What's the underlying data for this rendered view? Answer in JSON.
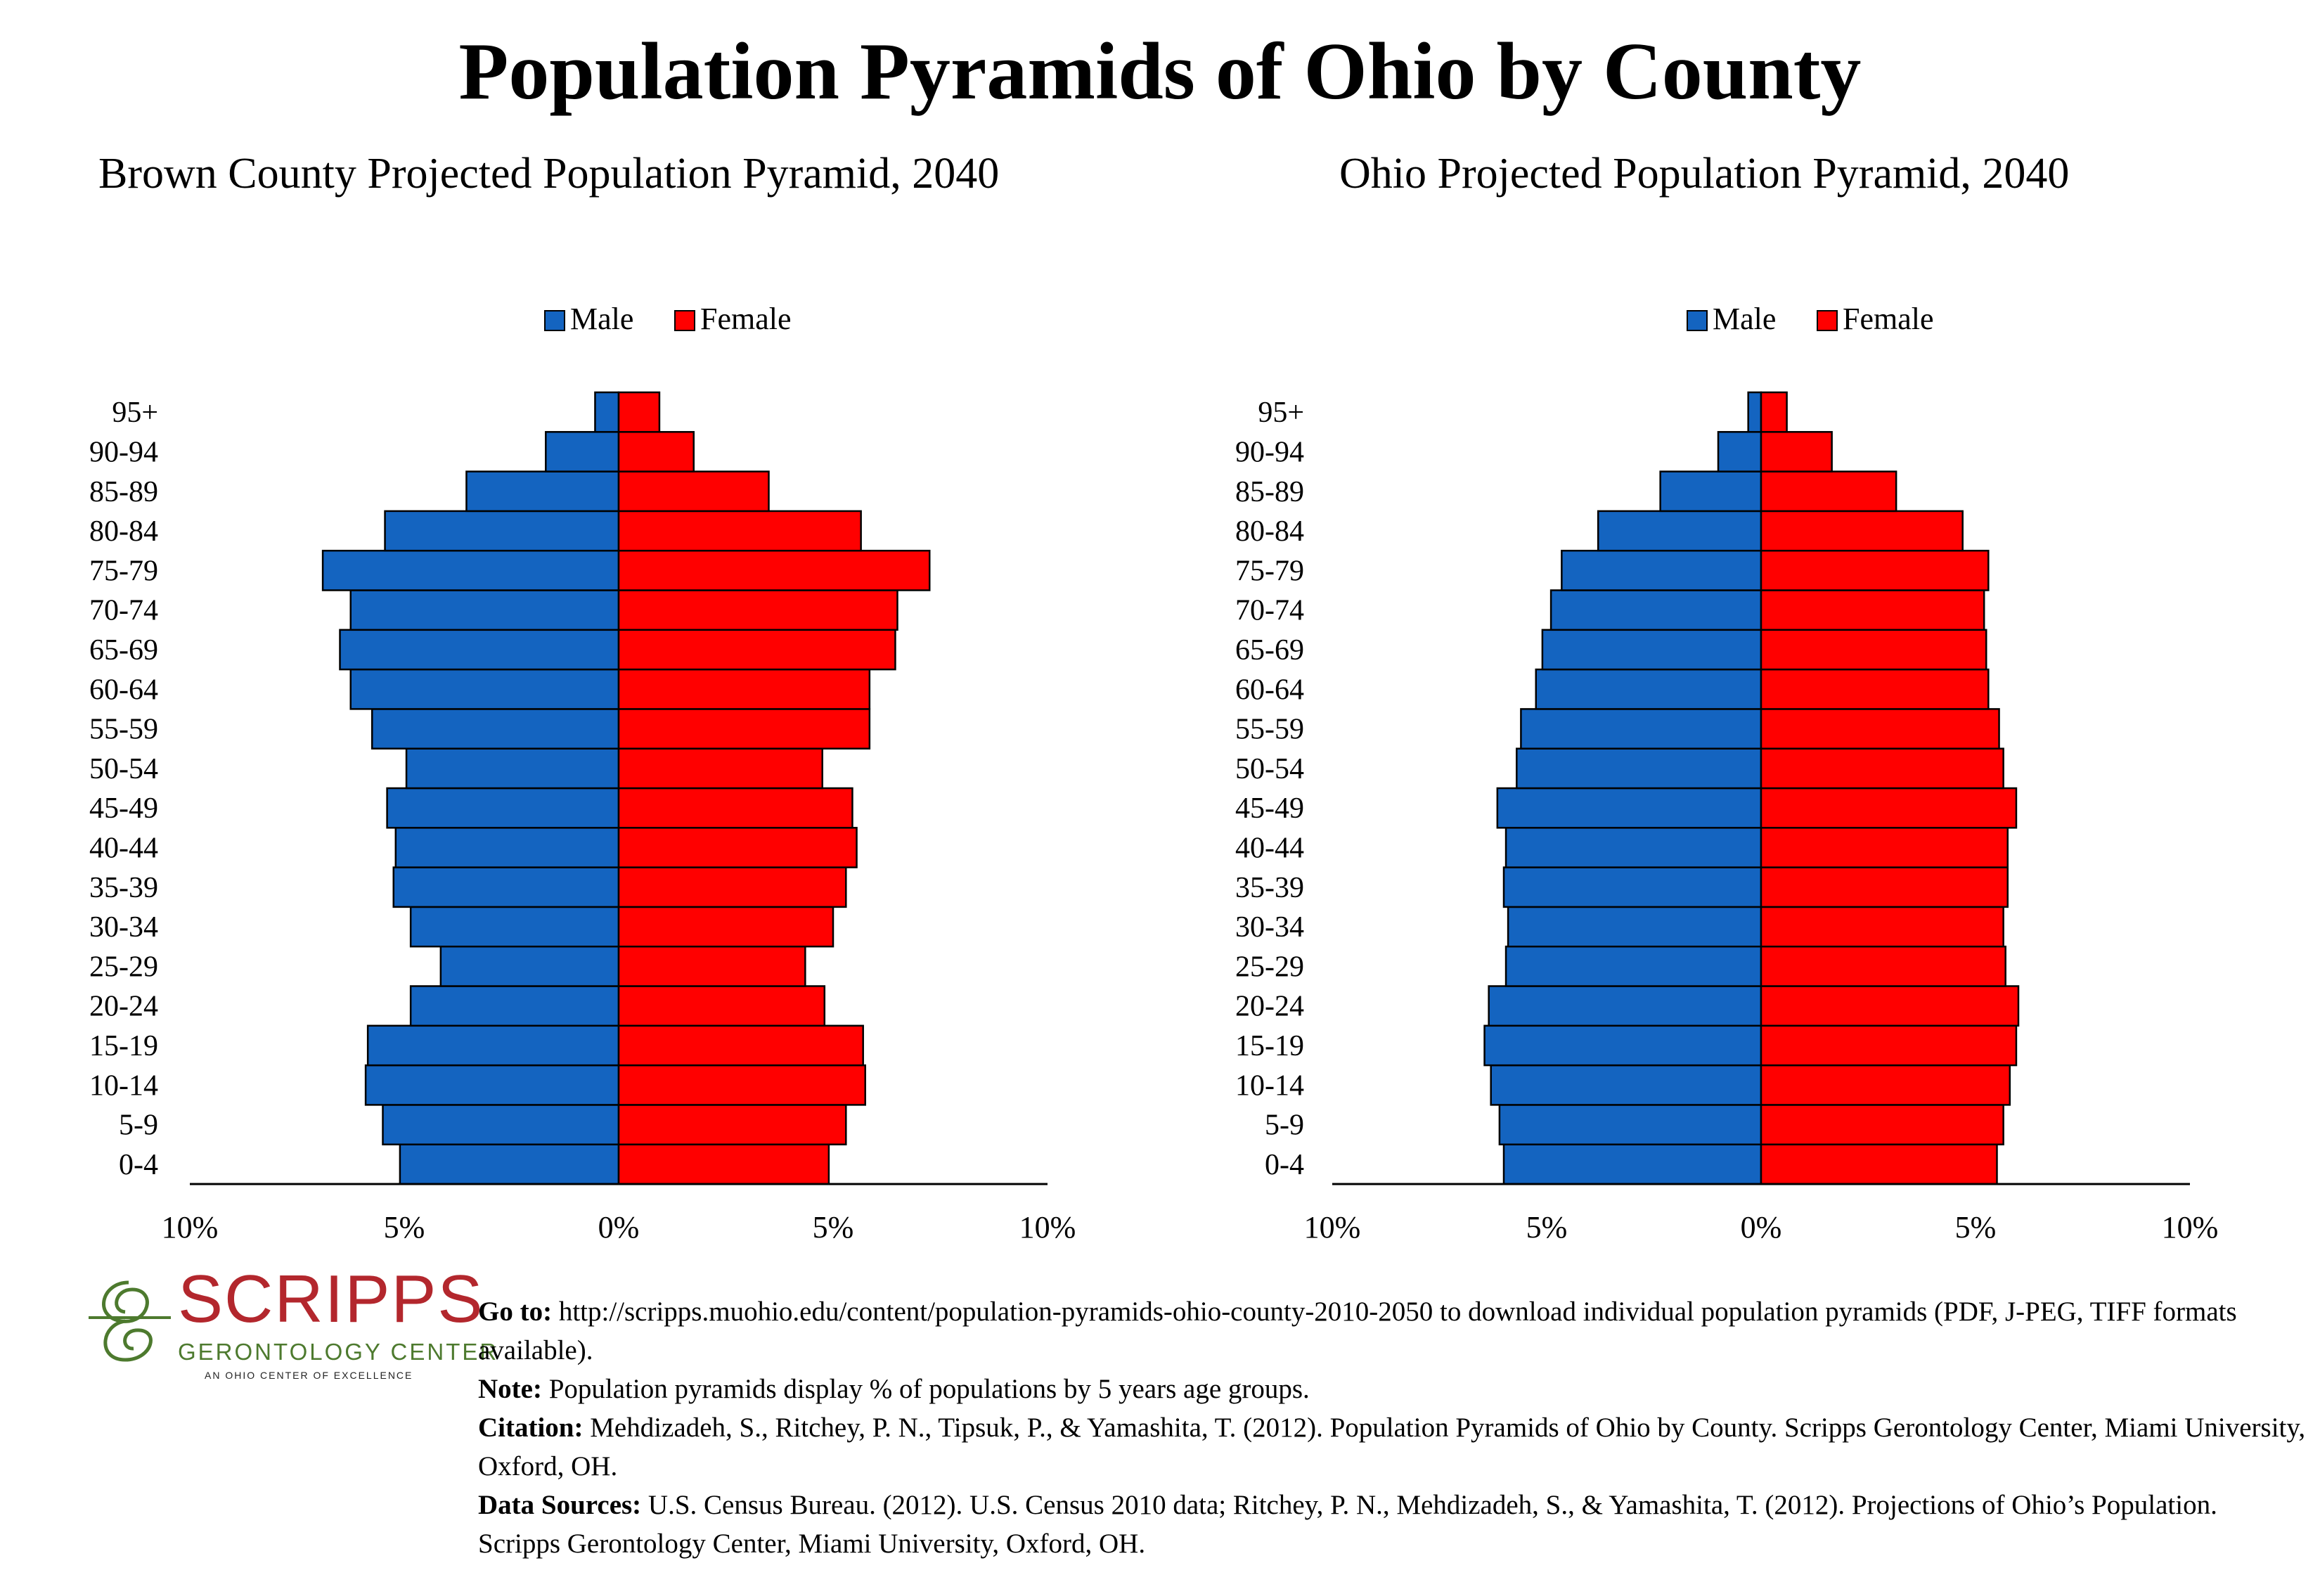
{
  "page": {
    "title": "Population Pyramids of Ohio by County"
  },
  "chart_data": [
    {
      "type": "bar",
      "orientation": "horizontal-pyramid",
      "title": "Brown County Projected Population Pyramid, 2040",
      "categories": [
        "0-4",
        "5-9",
        "10-14",
        "15-19",
        "20-24",
        "25-29",
        "30-34",
        "35-39",
        "40-44",
        "45-49",
        "50-54",
        "55-59",
        "60-64",
        "65-69",
        "70-74",
        "75-79",
        "80-84",
        "85-89",
        "90-94",
        "95+"
      ],
      "series": [
        {
          "name": "Male",
          "color": "#1464c0",
          "values": [
            5.1,
            5.5,
            5.9,
            5.85,
            4.85,
            4.15,
            4.85,
            5.25,
            5.2,
            5.4,
            4.95,
            5.75,
            6.25,
            6.5,
            6.25,
            6.9,
            5.45,
            3.55,
            1.7,
            0.55
          ]
        },
        {
          "name": "Female",
          "color": "#ff0000",
          "values": [
            4.9,
            5.3,
            5.75,
            5.7,
            4.8,
            4.35,
            5.0,
            5.3,
            5.55,
            5.45,
            4.75,
            5.85,
            5.85,
            6.45,
            6.5,
            7.25,
            5.65,
            3.5,
            1.75,
            0.95
          ]
        }
      ],
      "xlim": [
        -10,
        10
      ],
      "xticks": [
        "10%",
        "5%",
        "0%",
        "5%",
        "10%"
      ],
      "legend": {
        "position": "top-center",
        "labels": [
          "Male",
          "Female"
        ]
      },
      "grid": false
    },
    {
      "type": "bar",
      "orientation": "horizontal-pyramid",
      "title": "Ohio Projected Population Pyramid, 2040",
      "categories": [
        "0-4",
        "5-9",
        "10-14",
        "15-19",
        "20-24",
        "25-29",
        "30-34",
        "35-39",
        "40-44",
        "45-49",
        "50-54",
        "55-59",
        "60-64",
        "65-69",
        "70-74",
        "75-79",
        "80-84",
        "85-89",
        "90-94",
        "95+"
      ],
      "series": [
        {
          "name": "Male",
          "color": "#1464c0",
          "values": [
            6.0,
            6.1,
            6.3,
            6.45,
            6.35,
            5.95,
            5.9,
            6.0,
            5.95,
            6.15,
            5.7,
            5.6,
            5.25,
            5.1,
            4.9,
            4.65,
            3.8,
            2.35,
            1.0,
            0.3
          ]
        },
        {
          "name": "Female",
          "color": "#ff0000",
          "values": [
            5.5,
            5.65,
            5.8,
            5.95,
            6.0,
            5.7,
            5.65,
            5.75,
            5.75,
            5.95,
            5.65,
            5.55,
            5.3,
            5.25,
            5.2,
            5.3,
            4.7,
            3.15,
            1.65,
            0.6
          ]
        }
      ],
      "xlim": [
        -10,
        10
      ],
      "xticks": [
        "10%",
        "5%",
        "0%",
        "5%",
        "10%"
      ],
      "legend": {
        "position": "top-center",
        "labels": [
          "Male",
          "Female"
        ]
      },
      "grid": false
    }
  ],
  "logo": {
    "name": "SCRIPPS",
    "subtitle": "GERONTOLOGY CENTER",
    "tagline": "AN OHIO CENTER OF EXCELLENCE",
    "colors": {
      "red": "#b3272d",
      "green": "#4d7a2e"
    }
  },
  "notes": {
    "goto_label": "Go to:",
    "goto_text": "http://scripps.muohio.edu/content/population-pyramids-ohio-county-2010-2050 to download individual population pyramids (PDF, J-PEG, TIFF formats available).",
    "note_label": "Note:",
    "note_text": "Population pyramids display % of populations by 5 years age groups.",
    "citation_label": "Citation:",
    "citation_text": "Mehdizadeh, S., Ritchey, P. N., Tipsuk, P., & Yamashita, T. (2012). Population Pyramids of Ohio by County. Scripps Gerontology Center, Miami University, Oxford, OH.",
    "sources_label": "Data Sources:",
    "sources_text": "U.S. Census Bureau. (2012). U.S. Census 2010 data; Ritchey, P. N., Mehdizadeh, S., & Yamashita, T. (2012). Projections of Ohio’s Population. Scripps Gerontology Center, Miami University, Oxford, OH."
  }
}
